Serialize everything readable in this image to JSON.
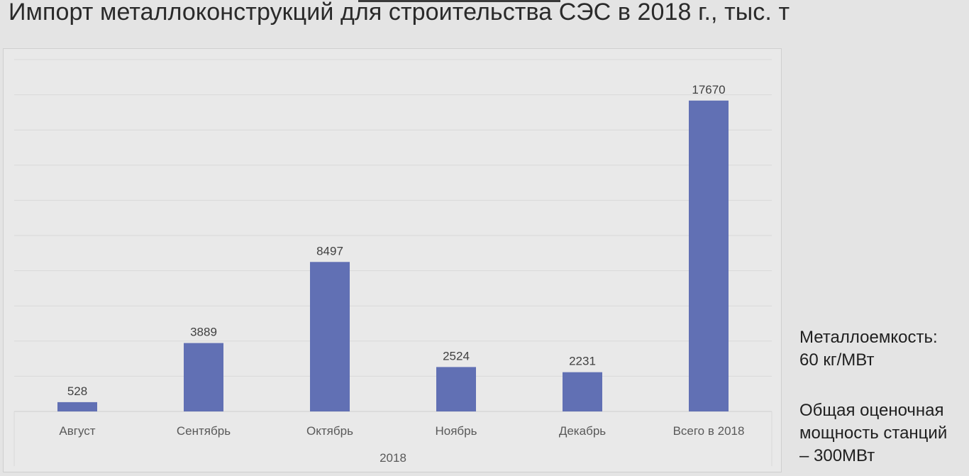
{
  "slide": {
    "title": "Импорт металлоконструкций для строительства СЭС в 2018 г., тыс. т"
  },
  "chart_data": {
    "type": "bar",
    "title": "",
    "xlabel": "2018",
    "ylabel": "",
    "categories": [
      "Август",
      "Сентябрь",
      "Октябрь",
      "Ноябрь",
      "Декабрь",
      "Всего в 2018"
    ],
    "values": [
      528,
      3889,
      8497,
      2524,
      2231,
      17670
    ],
    "data_labels": [
      "528",
      "3889",
      "8497",
      "2524",
      "2231",
      "17670"
    ],
    "ylim": [
      0,
      20000
    ],
    "grid": true,
    "legend": "none",
    "colors": {
      "bar": "#6170b4",
      "grid": "#d9d9d9",
      "axis": "#cfcfcf",
      "text": "#595959"
    }
  },
  "notes": {
    "line1": "Металлоемкость:",
    "line2": "60 кг/МВт",
    "line3": "Общая оценочная",
    "line4": "мощность станций",
    "line5": "– 300МВт"
  }
}
